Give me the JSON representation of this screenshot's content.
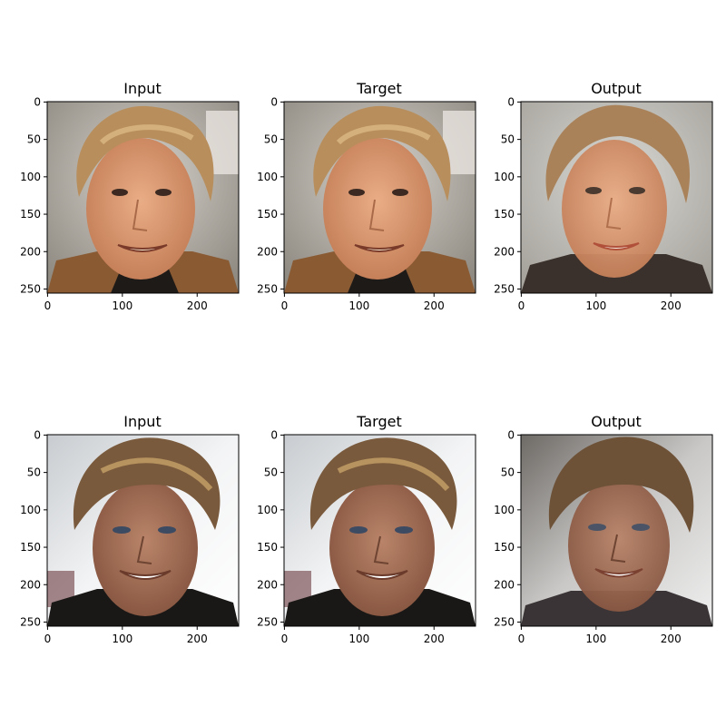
{
  "panels": [
    {
      "title": "Input",
      "tone": "warm-older"
    },
    {
      "title": "Target",
      "tone": "warm-older"
    },
    {
      "title": "Output",
      "tone": "warm-older-smooth"
    },
    {
      "title": "Input",
      "tone": "tan-young"
    },
    {
      "title": "Target",
      "tone": "tan-young"
    },
    {
      "title": "Output",
      "tone": "tan-young-smooth"
    }
  ],
  "axes": {
    "x_ticks": [
      "0",
      "100",
      "200"
    ],
    "y_ticks": [
      "0",
      "50",
      "100",
      "150",
      "200",
      "250"
    ]
  },
  "colors": {
    "warm_skin": "#d9956c",
    "warm_hair": "#b88e5c",
    "warm_bg": "#b9b6ad",
    "tan_skin": "#a8735a",
    "tan_hair": "#7a5a3c",
    "tan_bg": "#e6e8ea"
  }
}
